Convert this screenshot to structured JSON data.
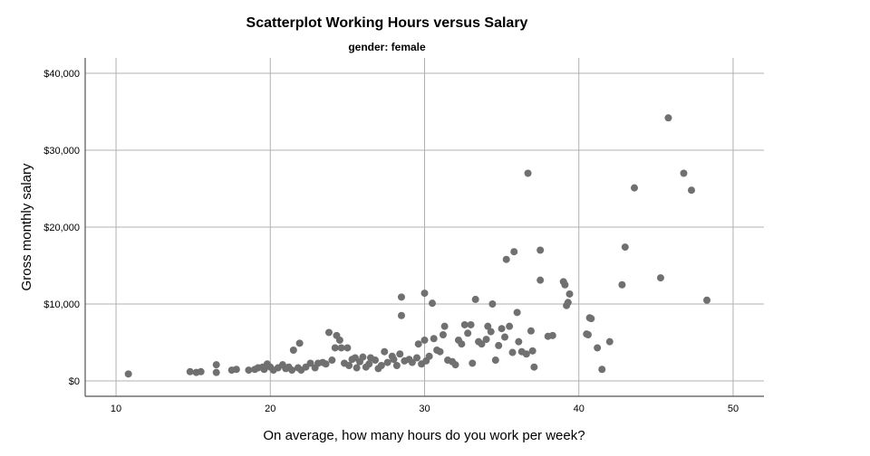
{
  "chart_data": {
    "type": "scatter",
    "title": "Scatterplot Working Hours versus Salary",
    "subtitle": "gender: female",
    "xlabel": "On average, how many hours do you work per week?",
    "ylabel": "Gross monthly salary",
    "xlim": [
      8,
      52
    ],
    "ylim": [
      -2000,
      42000
    ],
    "grid": true,
    "x_ticks": [
      10,
      20,
      30,
      40,
      50
    ],
    "x_tick_labels": [
      "10",
      "20",
      "30",
      "40",
      "50"
    ],
    "y_ticks": [
      0,
      10000,
      20000,
      30000,
      40000
    ],
    "y_tick_labels": [
      "$0",
      "$10,000",
      "$20,000",
      "$30,000",
      "$40,000"
    ],
    "colors": {
      "point": "#707070",
      "grid": "#b0b0b0",
      "axis": "#555555"
    },
    "points": [
      [
        10.8,
        900
      ],
      [
        14.8,
        1200
      ],
      [
        15.2,
        1100
      ],
      [
        15.5,
        1200
      ],
      [
        16.5,
        2100
      ],
      [
        16.5,
        1100
      ],
      [
        17.5,
        1400
      ],
      [
        17.8,
        1500
      ],
      [
        18.6,
        1400
      ],
      [
        19.0,
        1500
      ],
      [
        19.2,
        1700
      ],
      [
        19.5,
        1800
      ],
      [
        19.6,
        1500
      ],
      [
        19.8,
        2200
      ],
      [
        20.0,
        1800
      ],
      [
        20.2,
        1400
      ],
      [
        20.5,
        1700
      ],
      [
        20.8,
        2100
      ],
      [
        21.0,
        1600
      ],
      [
        21.2,
        1800
      ],
      [
        21.4,
        1400
      ],
      [
        21.5,
        4000
      ],
      [
        21.8,
        1700
      ],
      [
        21.9,
        4900
      ],
      [
        22.0,
        1400
      ],
      [
        22.3,
        1800
      ],
      [
        22.6,
        2300
      ],
      [
        22.9,
        1700
      ],
      [
        23.1,
        2300
      ],
      [
        23.4,
        2400
      ],
      [
        23.6,
        2200
      ],
      [
        23.8,
        6300
      ],
      [
        24.0,
        2700
      ],
      [
        24.2,
        4300
      ],
      [
        24.3,
        5900
      ],
      [
        24.5,
        5300
      ],
      [
        24.6,
        4300
      ],
      [
        24.8,
        2300
      ],
      [
        25.0,
        4300
      ],
      [
        25.1,
        2000
      ],
      [
        25.3,
        2800
      ],
      [
        25.5,
        3000
      ],
      [
        25.6,
        1700
      ],
      [
        25.8,
        2500
      ],
      [
        26.0,
        3100
      ],
      [
        26.2,
        1800
      ],
      [
        26.4,
        2200
      ],
      [
        26.5,
        3000
      ],
      [
        26.8,
        2700
      ],
      [
        27.0,
        1600
      ],
      [
        27.2,
        2000
      ],
      [
        27.4,
        3800
      ],
      [
        27.6,
        2400
      ],
      [
        27.9,
        3200
      ],
      [
        28.0,
        2800
      ],
      [
        28.2,
        2000
      ],
      [
        28.4,
        3500
      ],
      [
        28.5,
        10900
      ],
      [
        28.5,
        8500
      ],
      [
        28.7,
        2600
      ],
      [
        29.0,
        2800
      ],
      [
        29.2,
        2400
      ],
      [
        29.5,
        3000
      ],
      [
        29.6,
        4800
      ],
      [
        29.8,
        2200
      ],
      [
        30.0,
        11400
      ],
      [
        30.0,
        5300
      ],
      [
        30.1,
        2600
      ],
      [
        30.3,
        3200
      ],
      [
        30.5,
        10100
      ],
      [
        30.6,
        5500
      ],
      [
        30.8,
        4000
      ],
      [
        31.0,
        3800
      ],
      [
        31.2,
        6000
      ],
      [
        31.3,
        7100
      ],
      [
        31.5,
        2700
      ],
      [
        31.8,
        2500
      ],
      [
        32.0,
        2100
      ],
      [
        32.2,
        5300
      ],
      [
        32.4,
        4800
      ],
      [
        32.6,
        7300
      ],
      [
        32.8,
        6200
      ],
      [
        33.0,
        7300
      ],
      [
        33.1,
        2300
      ],
      [
        33.3,
        10600
      ],
      [
        33.5,
        5100
      ],
      [
        33.7,
        4800
      ],
      [
        34.0,
        5400
      ],
      [
        34.1,
        7100
      ],
      [
        34.3,
        6400
      ],
      [
        34.4,
        10000
      ],
      [
        34.6,
        2700
      ],
      [
        34.8,
        4600
      ],
      [
        35.0,
        6800
      ],
      [
        35.2,
        5700
      ],
      [
        35.3,
        15800
      ],
      [
        35.5,
        7100
      ],
      [
        35.7,
        3700
      ],
      [
        35.8,
        16800
      ],
      [
        36.0,
        8900
      ],
      [
        36.1,
        5100
      ],
      [
        36.3,
        3800
      ],
      [
        36.6,
        3500
      ],
      [
        36.7,
        27000
      ],
      [
        36.9,
        6500
      ],
      [
        37.0,
        3900
      ],
      [
        37.1,
        1800
      ],
      [
        37.5,
        17000
      ],
      [
        37.5,
        13100
      ],
      [
        38.0,
        5800
      ],
      [
        38.3,
        5900
      ],
      [
        39.0,
        12900
      ],
      [
        39.1,
        12500
      ],
      [
        39.2,
        9800
      ],
      [
        39.3,
        10200
      ],
      [
        39.4,
        11300
      ],
      [
        40.5,
        6100
      ],
      [
        40.6,
        6000
      ],
      [
        40.7,
        8200
      ],
      [
        40.8,
        8100
      ],
      [
        41.2,
        4300
      ],
      [
        41.5,
        1500
      ],
      [
        42.0,
        5100
      ],
      [
        42.8,
        12500
      ],
      [
        43.0,
        17400
      ],
      [
        43.6,
        25100
      ],
      [
        45.3,
        13400
      ],
      [
        45.8,
        34200
      ],
      [
        46.8,
        27000
      ],
      [
        47.3,
        24800
      ],
      [
        48.3,
        10500
      ]
    ]
  }
}
